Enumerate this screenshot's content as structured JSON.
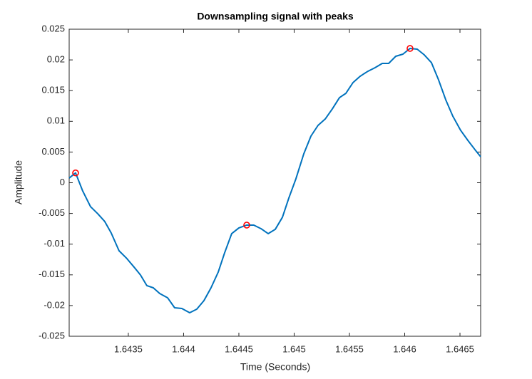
{
  "chart_data": {
    "type": "line",
    "title": "Downsampling signal with peaks",
    "xlabel": "Time (Seconds)",
    "ylabel": "Amplitude",
    "xlim": [
      1.642965,
      1.646687
    ],
    "ylim": [
      -0.025,
      0.025
    ],
    "xticks": [
      1.6435,
      1.644,
      1.6445,
      1.645,
      1.6455,
      1.646,
      1.6465
    ],
    "yticks": [
      -0.025,
      -0.02,
      -0.015,
      -0.01,
      -0.005,
      0,
      0.005,
      0.01,
      0.015,
      0.02,
      0.025
    ],
    "series": [
      {
        "color": "#0072bd",
        "marker": "none",
        "x": [
          1.642965,
          1.643023,
          1.643087,
          1.643158,
          1.643223,
          1.643287,
          1.643345,
          1.643416,
          1.643487,
          1.643552,
          1.64361,
          1.643668,
          1.643726,
          1.643784,
          1.643855,
          1.643919,
          1.643984,
          1.644055,
          1.644119,
          1.644184,
          1.644248,
          1.644313,
          1.644371,
          1.644435,
          1.6445,
          1.644571,
          1.644635,
          1.6447,
          1.644765,
          1.644829,
          1.644894,
          1.644952,
          1.645016,
          1.645087,
          1.645152,
          1.645216,
          1.645281,
          1.645345,
          1.64541,
          1.645468,
          1.645532,
          1.645597,
          1.645668,
          1.645732,
          1.645797,
          1.645855,
          1.645919,
          1.645984,
          1.646048,
          1.646113,
          1.646177,
          1.646242,
          1.646306,
          1.646371,
          1.646435,
          1.646506,
          1.646571,
          1.646635,
          1.646687
        ],
        "values": [
          0.00076,
          0.0016,
          -0.00133,
          -0.00389,
          -0.00504,
          -0.00632,
          -0.00818,
          -0.01108,
          -0.01235,
          -0.01374,
          -0.01502,
          -0.01676,
          -0.01711,
          -0.01804,
          -0.01873,
          -0.02036,
          -0.02047,
          -0.02117,
          -0.02059,
          -0.0192,
          -0.01711,
          -0.01456,
          -0.01142,
          -0.00829,
          -0.00736,
          -0.0069,
          -0.0069,
          -0.00748,
          -0.00829,
          -0.00759,
          -0.00562,
          -0.00249,
          0.00064,
          0.0047,
          0.0076,
          0.00934,
          0.01038,
          0.01201,
          0.01386,
          0.01456,
          0.0163,
          0.01734,
          0.01816,
          0.01874,
          0.01943,
          0.01943,
          0.02059,
          0.02094,
          0.02187,
          0.02175,
          0.02082,
          0.01955,
          0.01676,
          0.01352,
          0.01085,
          0.00853,
          0.0069,
          0.0054,
          0.00424
        ]
      },
      {
        "color": "#ff0000",
        "marker": "circle",
        "x": [
          1.643023,
          1.644571,
          1.646048
        ],
        "values": [
          0.0016,
          -0.0069,
          0.02187
        ]
      }
    ]
  }
}
